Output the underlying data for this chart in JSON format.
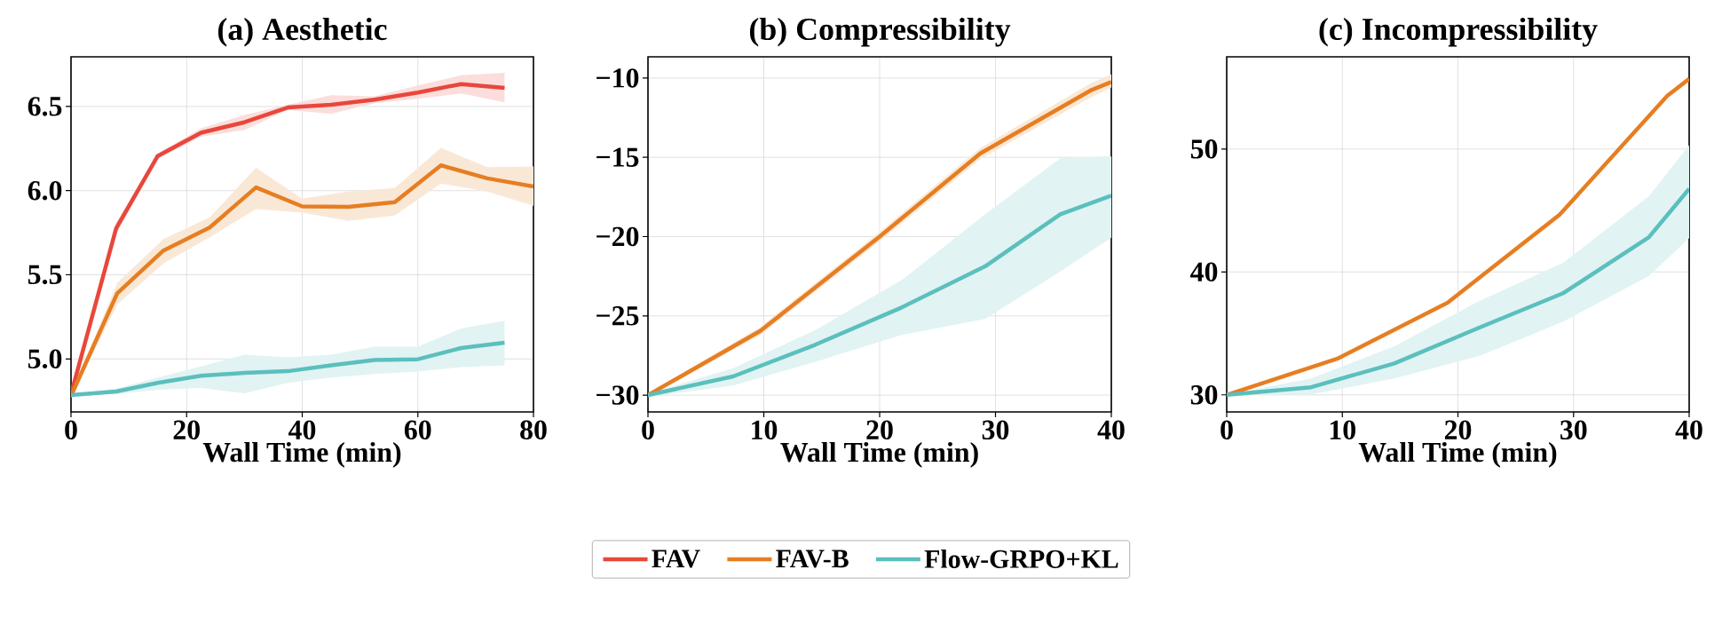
{
  "chart_data": [
    {
      "type": "line",
      "title": "(a) Aesthetic",
      "xlabel": "Wall Time (min)",
      "xlim": [
        0,
        80
      ],
      "ylim": [
        4.685,
        6.795
      ],
      "xticks": [
        0,
        20,
        40,
        60,
        80
      ],
      "yticks": [
        {
          "value": 5.0,
          "label": "5.0"
        },
        {
          "value": 5.5,
          "label": "5.5"
        },
        {
          "value": 6.0,
          "label": "6.0"
        },
        {
          "value": 6.5,
          "label": "6.5"
        }
      ],
      "grid": true,
      "legend": "bottom",
      "series": [
        {
          "name": "FAV",
          "color": "#e8473c",
          "x": [
            0,
            7.8,
            15,
            22.5,
            30,
            37.5,
            45,
            52.5,
            60,
            67.5,
            75
          ],
          "values": [
            4.79,
            5.775,
            6.206,
            6.344,
            6.406,
            6.494,
            6.51,
            6.54,
            6.583,
            6.633,
            6.61
          ],
          "lower": [
            4.77,
            5.74,
            6.19,
            6.32,
            6.36,
            6.48,
            6.456,
            6.52,
            6.546,
            6.577,
            6.525
          ],
          "upper": [
            4.81,
            5.81,
            6.22,
            6.37,
            6.45,
            6.51,
            6.567,
            6.56,
            6.625,
            6.685,
            6.7
          ]
        },
        {
          "name": "FAV-B",
          "color": "#e67e22",
          "x": [
            0,
            8,
            16,
            24,
            32,
            40,
            48,
            56,
            64,
            72,
            80
          ],
          "values": [
            4.78,
            5.39,
            5.644,
            5.781,
            6.019,
            5.906,
            5.904,
            5.931,
            6.15,
            6.073,
            6.025
          ],
          "lower": [
            4.77,
            5.323,
            5.567,
            5.723,
            5.89,
            5.869,
            5.82,
            5.852,
            6.042,
            5.994,
            5.91
          ],
          "upper": [
            4.79,
            5.452,
            5.712,
            5.842,
            6.135,
            5.952,
            5.994,
            6.015,
            6.254,
            6.14,
            6.144
          ]
        },
        {
          "name": "Flow-GRPO+KL",
          "color": "#5bbfbd",
          "x": [
            0,
            7.8,
            15,
            22.5,
            30,
            37.5,
            45,
            52.5,
            60,
            67.5,
            75
          ],
          "values": [
            4.785,
            4.806,
            4.858,
            4.9,
            4.917,
            4.927,
            4.962,
            4.994,
            4.998,
            5.065,
            5.096
          ],
          "lower": [
            4.78,
            4.79,
            4.817,
            4.827,
            4.796,
            4.858,
            4.89,
            4.91,
            4.925,
            4.952,
            4.962
          ],
          "upper": [
            4.79,
            4.823,
            4.89,
            4.956,
            5.025,
            5.01,
            5.025,
            5.073,
            5.073,
            5.181,
            5.227
          ]
        }
      ]
    },
    {
      "type": "line",
      "title": "(b) Compressibility",
      "xlabel": "Wall Time (min)",
      "xlim": [
        0,
        40
      ],
      "ylim": [
        -31.06,
        -8.66
      ],
      "xticks": [
        0,
        10,
        20,
        30,
        40
      ],
      "yticks": [
        {
          "value": -30,
          "label": "−30"
        },
        {
          "value": -25,
          "label": "−25"
        },
        {
          "value": -20,
          "label": "−20"
        },
        {
          "value": -15,
          "label": "−15"
        },
        {
          "value": -10,
          "label": "−10"
        }
      ],
      "grid": true,
      "series": [
        {
          "color": "#e67e22",
          "x": [
            0,
            9.7,
            20,
            28.7,
            38.3,
            40
          ],
          "values": [
            -30,
            -25.95,
            -20.0,
            -14.75,
            -10.75,
            -10.24
          ],
          "lower": [
            -30.1,
            -26.2,
            -20.3,
            -15.1,
            -11.2,
            -10.59
          ],
          "upper": [
            -29.9,
            -25.7,
            -19.7,
            -14.4,
            -10.3,
            -9.76
          ]
        },
        {
          "color": "#5bbfbd",
          "x": [
            0,
            7.35,
            14.45,
            21.9,
            29.1,
            35.6,
            40
          ],
          "values": [
            -30,
            -28.82,
            -26.82,
            -24.47,
            -21.88,
            -18.59,
            -17.41
          ],
          "lower": [
            -30.1,
            -29.4,
            -27.9,
            -26.2,
            -25.2,
            -22.2,
            -20.07
          ],
          "upper": [
            -29.9,
            -28.3,
            -25.9,
            -22.75,
            -18.6,
            -15.06,
            -14.94
          ]
        }
      ]
    },
    {
      "type": "line",
      "title": "(c) Incompressibility",
      "xlabel": "Wall Time (min)",
      "xlim": [
        0,
        40
      ],
      "ylim": [
        28.61,
        57.5
      ],
      "xticks": [
        0,
        10,
        20,
        30,
        40
      ],
      "yticks": [
        30,
        40,
        50
      ],
      "grid": true,
      "series": [
        {
          "color": "#e67e22",
          "x": [
            0,
            9.54,
            19.1,
            28.8,
            38.1,
            40
          ],
          "values": [
            30,
            32.93,
            37.5,
            44.66,
            54.32,
            55.71
          ]
        },
        {
          "color": "#5bbfbd",
          "x": [
            0,
            7.3,
            14.5,
            21.9,
            29.1,
            36.5,
            40
          ],
          "values": [
            30,
            30.62,
            32.56,
            35.49,
            38.27,
            42.81,
            46.76
          ],
          "lower": [
            30,
            30.03,
            31.33,
            33.18,
            35.96,
            39.66,
            42.75
          ],
          "upper": [
            30,
            31.33,
            33.95,
            37.65,
            40.74,
            46.14,
            50.31
          ]
        }
      ]
    }
  ]
}
